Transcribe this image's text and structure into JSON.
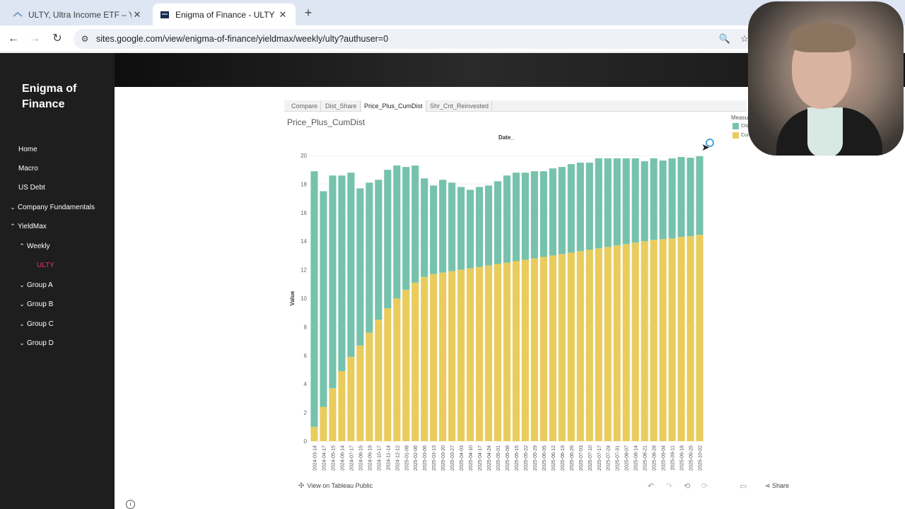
{
  "browser": {
    "tabs": [
      {
        "title": "ULTY, Ultra Income ETF – YieldMax",
        "active": false
      },
      {
        "title": "Enigma of Finance - ULTY",
        "active": true
      }
    ],
    "url": "sites.google.com/view/enigma-of-finance/yieldmax/weekly/ulty?authuser=0"
  },
  "site": {
    "brand": "Enigma of Finance",
    "nav": [
      {
        "label": "Home",
        "chevron": ""
      },
      {
        "label": "Macro",
        "chevron": ""
      },
      {
        "label": "US Debt",
        "chevron": ""
      },
      {
        "label": "Company Fundamentals",
        "chevron": "v"
      },
      {
        "label": "YieldMax",
        "chevron": "^"
      },
      {
        "label": "Weekly",
        "chevron": "^"
      },
      {
        "label": "ULTY",
        "chevron": "",
        "active": true
      },
      {
        "label": "Group A",
        "chevron": "v"
      },
      {
        "label": "Group B",
        "chevron": "v"
      },
      {
        "label": "Group C",
        "chevron": "v"
      },
      {
        "label": "Group D",
        "chevron": "v"
      }
    ]
  },
  "viz": {
    "tabs": [
      "Compare",
      "Dist_Share",
      "Price_Plus_CumDist",
      "Shr_Cnt_Reinvested"
    ],
    "selected_tab": "Price_Plus_CumDist",
    "title": "Price_Plus_CumDist",
    "column_header": "Date_",
    "legend_title": "Measu",
    "legend_items": [
      {
        "label": "Clos",
        "color": "#76c2ac"
      },
      {
        "label": "Cumu",
        "color": "#e9cc5c"
      }
    ],
    "footer_link": "View on Tableau Public",
    "share_label": "Share"
  },
  "chart_data": {
    "type": "bar",
    "stacked": true,
    "ylabel": "Value",
    "ylim": [
      0,
      20
    ],
    "yticks": [
      0,
      2,
      4,
      6,
      8,
      10,
      12,
      14,
      16,
      18,
      20
    ],
    "grid": true,
    "legend": "top-right",
    "categories": [
      "2024-03-14",
      "2024-04-17",
      "2024-05-15",
      "2024-06-14",
      "2024-07-17",
      "2024-08-15",
      "2024-09-19",
      "2024-10-17",
      "2024-11-14",
      "2024-12-12",
      "2025-01-08",
      "2025-02-06",
      "2025-03-06",
      "2025-03-13",
      "2025-03-20",
      "2025-03-27",
      "2025-04-03",
      "2025-04-10",
      "2025-04-17",
      "2025-04-24",
      "2025-05-01",
      "2025-05-08",
      "2025-05-15",
      "2025-05-22",
      "2025-05-29",
      "2025-06-05",
      "2025-06-12",
      "2025-06-19",
      "2025-06-26",
      "2025-07-03",
      "2025-07-10",
      "2025-07-17",
      "2025-07-24",
      "2025-07-31",
      "2025-08-07",
      "2025-08-14",
      "2025-08-21",
      "2025-08-28",
      "2025-09-04",
      "2025-09-11",
      "2025-09-18",
      "2025-09-25",
      "2025-10-02"
    ],
    "tick_labels": [
      "2024-03-14",
      "2024-04-17",
      "2024-05-15",
      "2024-06-14",
      "2024-07-17",
      "2024-08-15",
      "2024-09-19",
      "2024-10-17",
      "2024-11-14",
      "2024-12-12",
      "2025-01-08",
      "2025-02-06",
      "2025-03-06",
      "2025-03-13",
      "2025-03-20",
      "2025-03-27",
      "2025-04-03",
      "2025-04-10",
      "2025-04-17",
      "2025-04-24",
      "2025-05-01",
      "2025-05-08",
      "2025-05-15",
      "2025-05-22",
      "2025-05-29",
      "2025-06-05",
      "2025-06-12",
      "2025-06-19",
      "2025-06-26",
      "2025-07-03",
      "2025-07-10",
      "2025-07-17",
      "2025-07-24",
      "2025-07-31",
      "2025-08-07",
      "2025-08-14",
      "2025-08-21",
      "2025-08-28",
      "2025-09-04",
      "2025-09-11",
      "2025-09-18",
      "2025-09-25",
      "2025-10-02"
    ],
    "series": [
      {
        "name": "Cumu",
        "color": "#e9cc5c",
        "values": [
          1.0,
          2.4,
          3.7,
          4.9,
          5.9,
          6.7,
          7.6,
          8.5,
          9.3,
          10.0,
          10.6,
          11.1,
          11.5,
          11.7,
          11.8,
          11.9,
          12.0,
          12.1,
          12.2,
          12.3,
          12.4,
          12.5,
          12.6,
          12.7,
          12.8,
          12.9,
          13.0,
          13.1,
          13.2,
          13.3,
          13.4,
          13.5,
          13.6,
          13.7,
          13.8,
          13.9,
          14.0,
          14.1,
          14.15,
          14.2,
          14.3,
          14.35,
          14.45
        ]
      },
      {
        "name": "Clos",
        "color": "#76c2ac",
        "values": [
          17.9,
          15.1,
          14.9,
          13.7,
          12.9,
          11.0,
          10.5,
          9.8,
          9.7,
          9.3,
          8.6,
          8.2,
          6.9,
          6.2,
          6.5,
          6.2,
          5.8,
          5.5,
          5.6,
          5.6,
          5.8,
          6.1,
          6.2,
          6.1,
          6.1,
          6.0,
          6.1,
          6.1,
          6.2,
          6.2,
          6.1,
          6.3,
          6.2,
          6.1,
          6.0,
          5.9,
          5.6,
          5.7,
          5.5,
          5.6,
          5.6,
          5.5,
          5.5
        ]
      }
    ]
  }
}
